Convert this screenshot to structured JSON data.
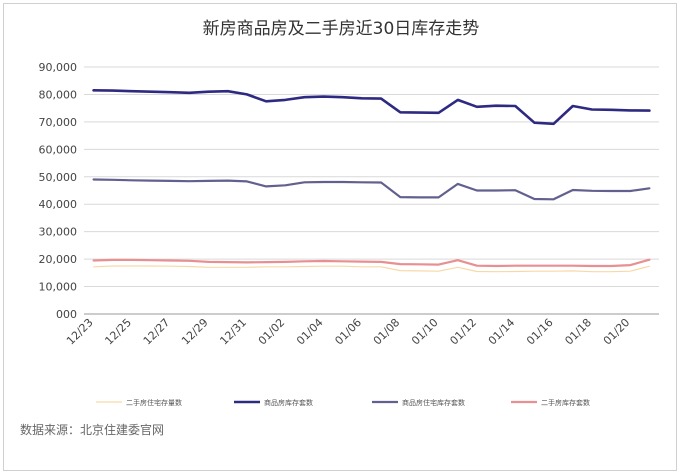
{
  "source_note": "数据来源：北京住建委官网",
  "chart_data": {
    "type": "line",
    "title": "新房商品房及二手房近30日库存走势",
    "xlabel": "",
    "ylabel": "",
    "ylim": [
      0,
      90000
    ],
    "y_ticks": [
      "000",
      "10,000",
      "20,000",
      "30,000",
      "40,000",
      "50,000",
      "60,000",
      "70,000",
      "80,000",
      "90,000"
    ],
    "x": [
      "12/23",
      "12/24",
      "12/25",
      "12/26",
      "12/27",
      "12/28",
      "12/29",
      "12/30",
      "12/31",
      "01/01",
      "01/02",
      "01/03",
      "01/04",
      "01/05",
      "01/06",
      "01/07",
      "01/08",
      "01/09",
      "01/10",
      "01/11",
      "01/12",
      "01/13",
      "01/14",
      "01/15",
      "01/16",
      "01/17",
      "01/18",
      "01/19",
      "01/20",
      "01/21"
    ],
    "x_tick_labels": [
      "12/23",
      "12/25",
      "12/27",
      "12/29",
      "12/31",
      "01/02",
      "01/04",
      "01/06",
      "01/08",
      "01/10",
      "01/12",
      "01/14",
      "01/16",
      "01/18",
      "01/20"
    ],
    "grid": "horizontal",
    "legend_position": "bottom",
    "series": [
      {
        "name": "二手房住宅存量数",
        "color": "#f7d9a8",
        "width": 1.2,
        "values": [
          17200,
          17500,
          17500,
          17500,
          17400,
          17300,
          17000,
          17000,
          17000,
          17200,
          17200,
          17300,
          17400,
          17400,
          17200,
          17200,
          15800,
          15700,
          15600,
          17000,
          15500,
          15400,
          15500,
          15600,
          15600,
          15700,
          15400,
          15400,
          15600,
          17400
        ]
      },
      {
        "name": "商品房库存套数",
        "color": "#2e2a82",
        "width": 2.6,
        "values": [
          81500,
          81400,
          81200,
          81000,
          80800,
          80600,
          81000,
          81200,
          80000,
          77500,
          78000,
          79000,
          79200,
          79000,
          78600,
          78500,
          73500,
          73400,
          73300,
          78000,
          75500,
          75900,
          75800,
          69700,
          69300,
          75800,
          74500,
          74400,
          74200,
          74100
        ]
      },
      {
        "name": "商品房住宅库存套数",
        "color": "#62608f",
        "width": 2.2,
        "values": [
          49000,
          48900,
          48700,
          48600,
          48500,
          48400,
          48500,
          48600,
          48300,
          46500,
          46900,
          48000,
          48100,
          48100,
          48000,
          47900,
          42600,
          42500,
          42500,
          47400,
          45000,
          45000,
          45100,
          41900,
          41800,
          45200,
          44900,
          44800,
          44800,
          45800
        ]
      },
      {
        "name": "二手房库存套数",
        "color": "#e88f92",
        "width": 2.2,
        "values": [
          19500,
          19700,
          19700,
          19600,
          19500,
          19400,
          19000,
          18900,
          18800,
          18900,
          19000,
          19200,
          19300,
          19200,
          19100,
          19000,
          18200,
          18100,
          18000,
          19600,
          17600,
          17500,
          17600,
          17600,
          17600,
          17600,
          17500,
          17500,
          17800,
          19800
        ]
      }
    ]
  }
}
